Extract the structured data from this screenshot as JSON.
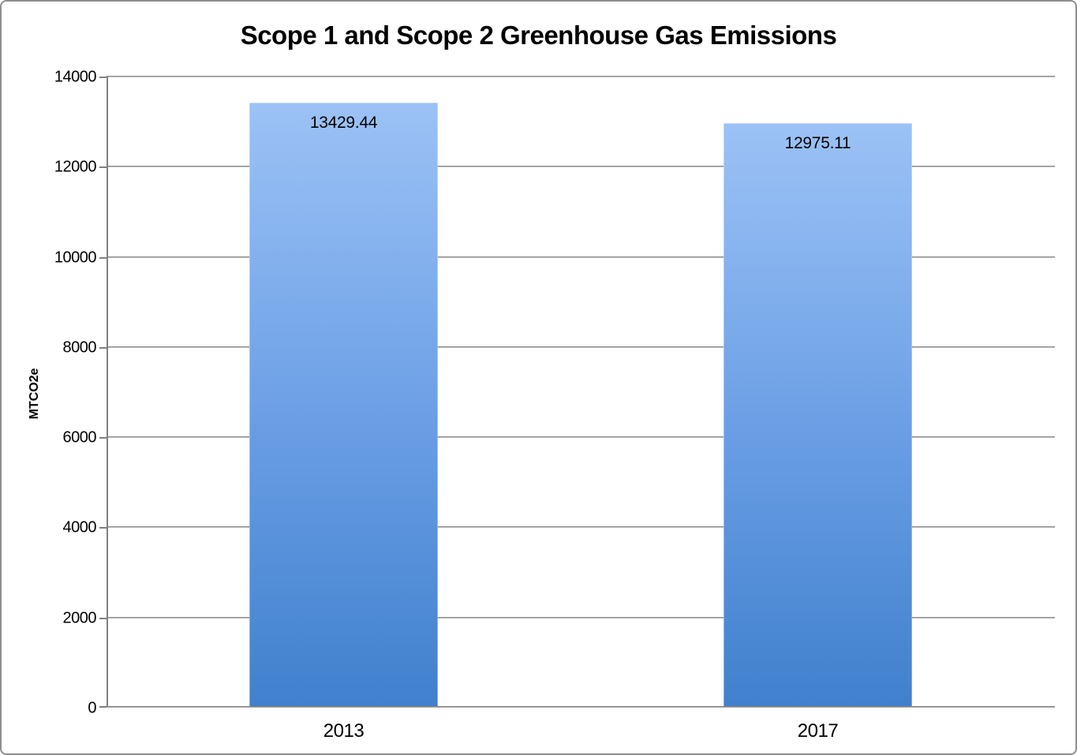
{
  "chart_data": {
    "type": "bar",
    "title": "Scope 1 and Scope 2 Greenhouse Gas Emissions",
    "ylabel": "MTCO2e",
    "categories": [
      "2013",
      "2017"
    ],
    "values": [
      13429.44,
      12975.11
    ],
    "data_labels": [
      "13429.44",
      "12975.11"
    ],
    "ylim": [
      0,
      14000
    ],
    "ytick_step": 2000,
    "y_tick_labels": [
      "14000",
      "12000",
      "10000",
      "8000",
      "6000",
      "4000",
      "2000",
      "0"
    ],
    "grid": true,
    "legend": false,
    "colors": {
      "bar_gradient_top": "#9cc2f6",
      "bar_gradient_mid": "#689de4",
      "bar_gradient_bottom": "#4080cd",
      "gridline": "#7f7f7f",
      "axis": "#808080",
      "text": "#000000",
      "background": "#ffffff",
      "frame_border": "#8e8e8e"
    }
  }
}
